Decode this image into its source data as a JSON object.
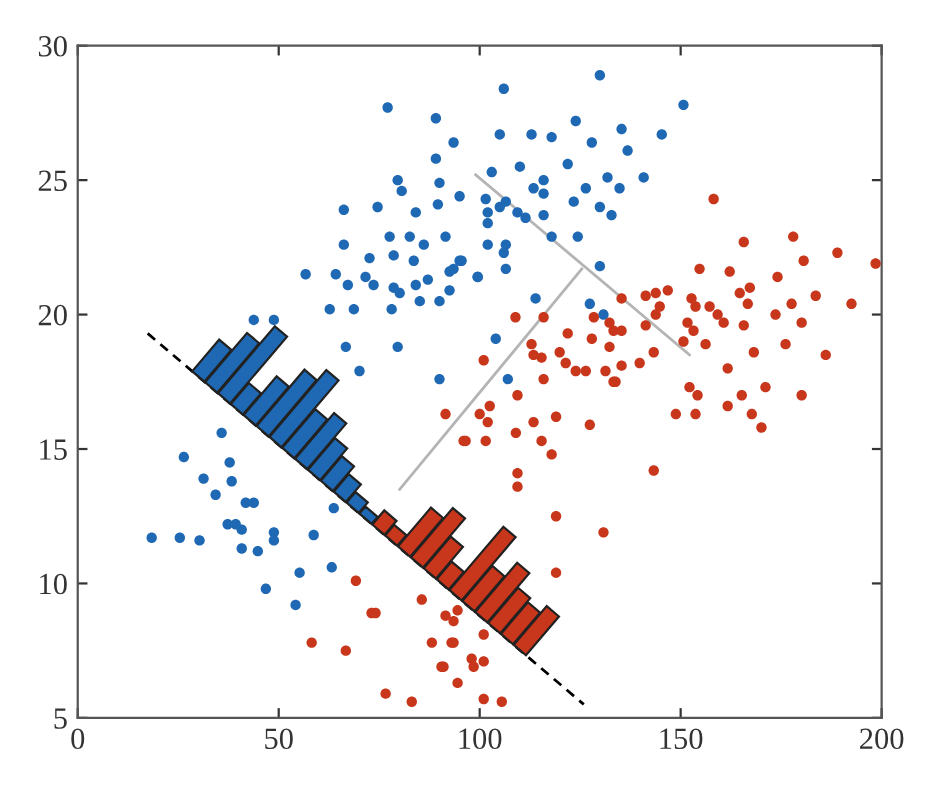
{
  "chart_data": {
    "type": "scatter",
    "xlim": [
      0,
      200
    ],
    "ylim": [
      5,
      30
    ],
    "xticks": [
      0,
      50,
      100,
      150,
      200
    ],
    "yticks": [
      5,
      10,
      15,
      20,
      25,
      30
    ],
    "grid": false,
    "legend": false,
    "marker": "circle",
    "series": [
      {
        "color": "#1f69b4",
        "x": [
          77.1,
          89.1,
          93.5,
          89.1,
          79.6,
          80.6,
          90,
          66.2,
          74.6,
          84.1,
          89.6,
          95,
          77.6,
          82.6,
          86.1,
          91.5,
          66.2,
          72.6,
          78.6,
          83.6,
          95,
          56.7,
          64.2,
          71.6,
          67.2,
          73.6,
          87.1,
          92.5,
          99.5,
          78.6,
          84.1,
          92.5,
          80.1,
          85.1,
          90,
          62.7,
          68.7,
          78.1,
          66.7,
          79.6,
          90,
          43.8,
          48.8,
          70.1,
          129.9,
          106,
          150.7,
          145.3,
          135.3,
          123.9,
          112.9,
          117.9,
          105,
          127.9,
          136.8,
          121.9,
          110,
          103,
          131.8,
          140.8,
          115.9,
          113.4,
          126.4,
          115.9,
          134.8,
          123.4,
          129.9,
          132.8,
          115.9,
          109.4,
          111.4,
          101.5,
          106.5,
          105,
          102,
          102,
          124.4,
          117.9,
          102,
          106.5,
          106,
          95.5,
          106.5,
          99.5,
          93.5,
          104,
          107,
          113.9,
          129.9,
          127.4,
          130.8,
          18.4,
          25.4,
          30.3,
          26.4,
          35.8,
          37.8,
          31.3,
          38.3,
          34.3,
          41.8,
          43.8,
          37.3,
          39.3,
          40.8,
          40.8,
          44.8,
          48.8,
          48.8,
          58.7,
          55.2,
          63.2,
          46.8,
          54.2,
          63.7
        ],
        "values": [
          27.7,
          27.3,
          26.4,
          25.8,
          25,
          24.6,
          24.9,
          23.9,
          24,
          23.8,
          24.1,
          24.4,
          22.9,
          22.9,
          22.6,
          22.9,
          22.6,
          22.1,
          22.2,
          22,
          22,
          21.5,
          21.5,
          21.4,
          21.1,
          21.1,
          21.3,
          21.6,
          21.4,
          21,
          21.1,
          20.9,
          20.8,
          20.5,
          20.5,
          20.2,
          20.2,
          20.2,
          18.8,
          18.8,
          17.6,
          19.8,
          19.8,
          17.9,
          28.9,
          28.4,
          27.8,
          26.7,
          26.9,
          27.2,
          26.7,
          26.6,
          26.7,
          26.4,
          26.1,
          25.6,
          25.5,
          25.3,
          25.1,
          25.1,
          25,
          24.7,
          24.7,
          24.5,
          24.7,
          24.2,
          24,
          23.7,
          23.7,
          23.8,
          23.6,
          24.3,
          24.2,
          24,
          23.8,
          23.4,
          22.9,
          22.9,
          22.6,
          22.6,
          22.3,
          22,
          21.7,
          21.4,
          21.7,
          19.1,
          17.6,
          20.6,
          21.8,
          20.4,
          20,
          11.7,
          11.7,
          11.6,
          14.7,
          15.6,
          14.5,
          13.9,
          13.8,
          13.3,
          13,
          13,
          12.2,
          12.2,
          12,
          11.3,
          11.2,
          11.9,
          11.6,
          11.8,
          10.4,
          10.6,
          9.8,
          9.2,
          12.8
        ]
      },
      {
        "color": "#c8361b",
        "x": [
          158.2,
          165.7,
          178,
          189,
          198.5,
          180.6,
          154.7,
          162.2,
          174.1,
          167.2,
          183.6,
          192.5,
          164.7,
          166.7,
          177.6,
          173.6,
          180.1,
          165.7,
          186.1,
          176.1,
          168.2,
          161.7,
          152.7,
          157.2,
          153.7,
          159.2,
          160.7,
          151.7,
          153.2,
          156.2,
          150.7,
          146.8,
          143.8,
          141.3,
          144.8,
          143.8,
          141.3,
          139.8,
          143.3,
          135.3,
          132.3,
          133.3,
          135.3,
          135.3,
          132.3,
          128.4,
          127.9,
          121.9,
          119.9,
          121.4,
          123.9,
          126.4,
          131.3,
          133.3,
          115.9,
          108.9,
          112.9,
          113.4,
          115.4,
          115.9,
          101,
          109.4,
          91.5,
          100,
          102.5,
          102,
          96.5,
          101.5,
          109,
          113.4,
          119,
          115.4,
          117.9,
          127.4,
          109.4,
          109.4,
          119,
          130.8,
          119,
          143.3,
          148.8,
          153.7,
          154.2,
          152.2,
          161.7,
          165.2,
          167.7,
          170.1,
          171.1,
          180.1,
          133.8,
          91.5,
          93.5,
          94.5,
          93,
          91,
          101,
          98,
          101,
          98.5,
          94.5,
          101,
          105.5,
          69.2,
          73.1,
          74.1,
          85.6,
          58.2,
          66.7,
          76.6,
          83.1,
          88.1,
          90.5,
          93.5,
          96
        ],
        "values": [
          24.3,
          22.7,
          22.9,
          22.3,
          21.9,
          22,
          21.7,
          21.6,
          21.4,
          21,
          20.7,
          20.4,
          20.8,
          20.4,
          20.4,
          20,
          19.7,
          19.6,
          18.5,
          18.9,
          18.6,
          18,
          20.6,
          20.3,
          20.3,
          20,
          19.7,
          19.7,
          19.4,
          18.9,
          19,
          20.9,
          20.8,
          20.7,
          20.3,
          20,
          19.6,
          18.2,
          18.6,
          20.6,
          19.7,
          19.4,
          19.4,
          18.1,
          18.8,
          19.9,
          19.1,
          19.3,
          18.6,
          18.2,
          17.9,
          17.9,
          17.9,
          17.5,
          19.9,
          19.9,
          18.9,
          18.5,
          18.4,
          17.6,
          18.3,
          17,
          16.3,
          16.3,
          16.6,
          16,
          15.3,
          15.3,
          15.6,
          16,
          16.2,
          15.3,
          14.8,
          15.9,
          14.1,
          13.6,
          12.5,
          11.9,
          10.4,
          14.2,
          16.3,
          16.3,
          17,
          17.3,
          16.6,
          17,
          16.3,
          15.8,
          17.3,
          17,
          17.5,
          8.8,
          8.6,
          9,
          7.8,
          6.9,
          8.1,
          7.2,
          7.1,
          6.9,
          6.3,
          5.7,
          5.6,
          10.1,
          8.9,
          8.9,
          9.4,
          7.8,
          7.5,
          5.9,
          5.6,
          7.8,
          6.9,
          7.8,
          15.3
        ]
      },
      {
        "type": "line",
        "color": "#000000",
        "line_style": "dashed",
        "marker": "none",
        "x": [
          17.4,
          125.9
        ],
        "values": [
          19.3,
          5.5
        ]
      },
      {
        "type": "line",
        "color": "#b4b4b4",
        "line_style": "solid",
        "marker": "none",
        "x": [
          99,
          152.2
        ],
        "values": [
          25.2,
          18.5
        ]
      },
      {
        "type": "line",
        "color": "#b4b4b4",
        "line_style": "solid",
        "marker": "none",
        "x": [
          80.1,
          125.4
        ],
        "values": [
          13.5,
          21.7
        ]
      }
    ]
  }
}
